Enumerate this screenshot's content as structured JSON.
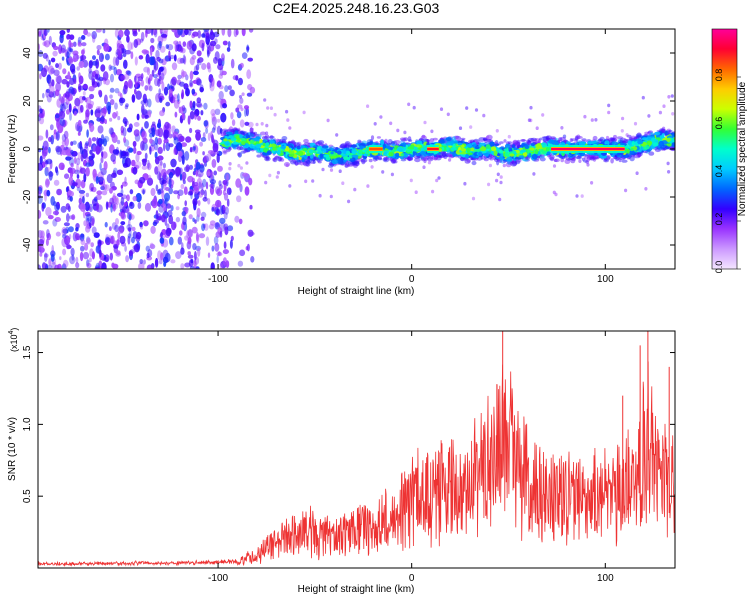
{
  "figure": {
    "title": "C2E4.2025.248.16.23.G03"
  },
  "chart_data": [
    {
      "type": "heatmap",
      "xlabel": "Height of straight line (km)",
      "ylabel": "Frequency (Hz)",
      "xlim": [
        -193,
        136
      ],
      "ylim": [
        -50,
        50
      ],
      "xticks": [
        -100,
        0,
        100
      ],
      "yticks": [
        -40,
        -20,
        0,
        20,
        40
      ],
      "colorbar": {
        "label": "Normalized spectral amplitude",
        "range": [
          0,
          1
        ],
        "ticks": [
          "0.0",
          "0.2",
          "0.4",
          "0.6",
          "0.8"
        ],
        "colors": [
          "#f4e6ff",
          "#cc99ff",
          "#9933ff",
          "#3300ff",
          "#0066ff",
          "#00ccff",
          "#00ffcc",
          "#33ff33",
          "#ccff00",
          "#ffcc00",
          "#ff6600",
          "#ff0033",
          "#ff0099"
        ]
      },
      "noise_region": {
        "x_min": -193,
        "x_max": -95,
        "y_min": -50,
        "y_max": 50
      },
      "signal_track": {
        "description_points": [
          {
            "x": -98,
            "y": 3
          },
          {
            "x": -90,
            "y": 4
          },
          {
            "x": -80,
            "y": 2
          },
          {
            "x": -70,
            "y": 0
          },
          {
            "x": -60,
            "y": -2
          },
          {
            "x": -50,
            "y": -1
          },
          {
            "x": -40,
            "y": -3
          },
          {
            "x": -30,
            "y": -2
          },
          {
            "x": -20,
            "y": 0
          },
          {
            "x": -10,
            "y": -1
          },
          {
            "x": 0,
            "y": 0
          },
          {
            "x": 10,
            "y": 0
          },
          {
            "x": 20,
            "y": 1
          },
          {
            "x": 30,
            "y": -1
          },
          {
            "x": 40,
            "y": 0
          },
          {
            "x": 50,
            "y": -2
          },
          {
            "x": 60,
            "y": -1
          },
          {
            "x": 70,
            "y": 0
          },
          {
            "x": 80,
            "y": 0
          },
          {
            "x": 90,
            "y": 0
          },
          {
            "x": 100,
            "y": 0
          },
          {
            "x": 110,
            "y": 0
          },
          {
            "x": 120,
            "y": 2
          },
          {
            "x": 130,
            "y": 4
          },
          {
            "x": 136,
            "y": 3
          }
        ],
        "peak_segments": [
          {
            "x_start": 72,
            "x_end": 110,
            "y": 0,
            "amplitude": 0.95
          },
          {
            "x_start": 8,
            "x_end": 14,
            "y": 0,
            "amplitude": 0.9
          },
          {
            "x_start": -22,
            "x_end": -15,
            "y": 0,
            "amplitude": 0.85
          }
        ]
      }
    },
    {
      "type": "line",
      "xlabel": "Height of straight line (km)",
      "ylabel": "SNR (10 * v/v)",
      "y_multiplier_label": "(x10",
      "y_multiplier_exp": "4",
      "y_multiplier_suffix": ")",
      "xlim": [
        -193,
        136
      ],
      "ylim": [
        0,
        1.65
      ],
      "xticks": [
        -100,
        0,
        100
      ],
      "yticks": [
        "0.5",
        "1.0",
        "1.5"
      ],
      "ytick_values": [
        0.5,
        1.0,
        1.5
      ],
      "series": [
        {
          "color": "#ee3333",
          "envelope": [
            {
              "x": -193,
              "y": 0.03
            },
            {
              "x": -150,
              "y": 0.035
            },
            {
              "x": -110,
              "y": 0.04
            },
            {
              "x": -90,
              "y": 0.05
            },
            {
              "x": -80,
              "y": 0.1
            },
            {
              "x": -70,
              "y": 0.2
            },
            {
              "x": -60,
              "y": 0.27
            },
            {
              "x": -50,
              "y": 0.28
            },
            {
              "x": -40,
              "y": 0.22
            },
            {
              "x": -30,
              "y": 0.3
            },
            {
              "x": -20,
              "y": 0.3
            },
            {
              "x": -10,
              "y": 0.4
            },
            {
              "x": 0,
              "y": 0.5
            },
            {
              "x": 10,
              "y": 0.58
            },
            {
              "x": 20,
              "y": 0.6
            },
            {
              "x": 30,
              "y": 0.65
            },
            {
              "x": 40,
              "y": 0.8
            },
            {
              "x": 47,
              "y": 1.05
            },
            {
              "x": 55,
              "y": 0.75
            },
            {
              "x": 65,
              "y": 0.6
            },
            {
              "x": 75,
              "y": 0.55
            },
            {
              "x": 85,
              "y": 0.5
            },
            {
              "x": 95,
              "y": 0.55
            },
            {
              "x": 105,
              "y": 0.5
            },
            {
              "x": 115,
              "y": 0.7
            },
            {
              "x": 122,
              "y": 0.9
            },
            {
              "x": 128,
              "y": 0.7
            },
            {
              "x": 136,
              "y": 0.6
            }
          ],
          "spikes": [
            {
              "x": 47,
              "y": 1.65
            },
            {
              "x": 44,
              "y": 1.28
            },
            {
              "x": 109,
              "y": 1.2
            },
            {
              "x": 118,
              "y": 1.55
            },
            {
              "x": 122,
              "y": 1.65
            },
            {
              "x": 133,
              "y": 1.4
            }
          ]
        }
      ]
    }
  ]
}
